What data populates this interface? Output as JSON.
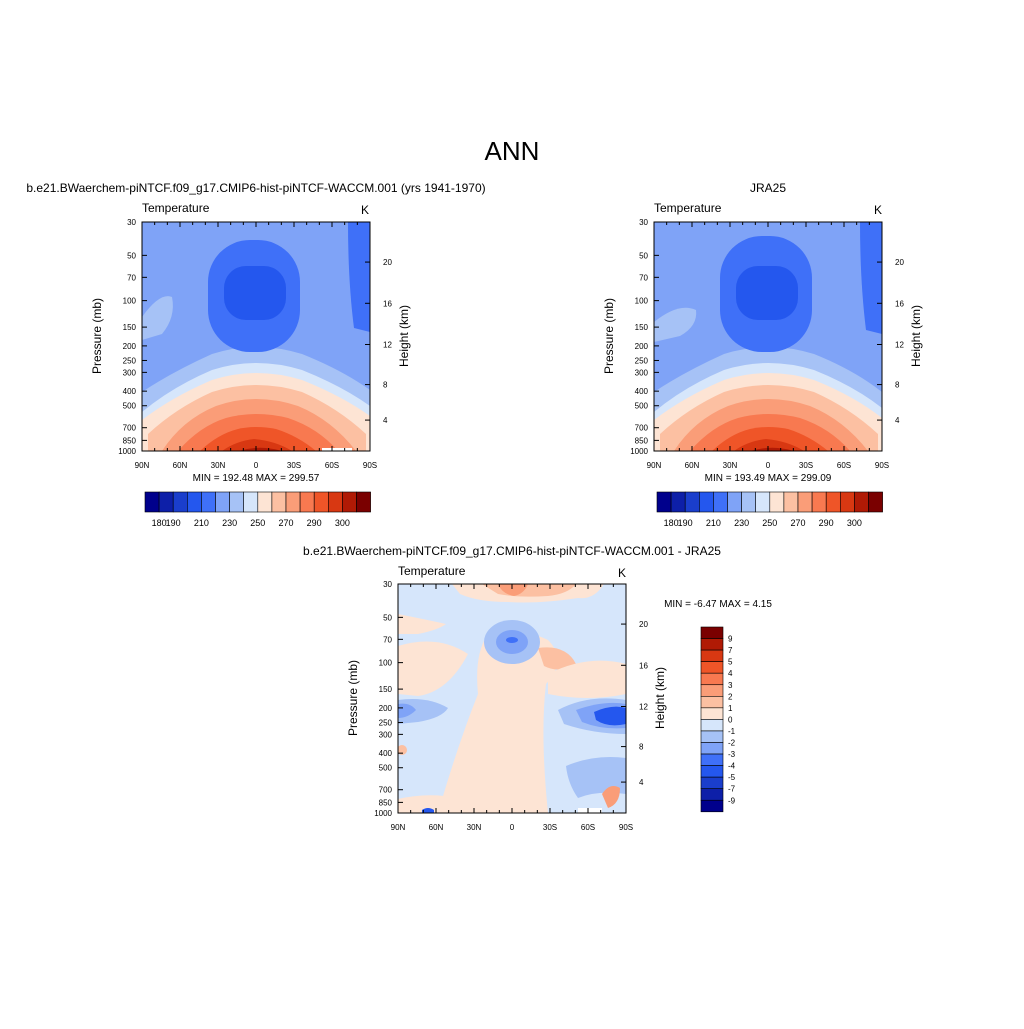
{
  "title": "ANN",
  "colors": {
    "temp_scale": [
      "#00008c",
      "#0d1fa8",
      "#1a3ecc",
      "#2457ee",
      "#3f70f8",
      "#7fa3f7",
      "#a6c2f6",
      "#d6e6fb",
      "#fde4d4",
      "#fcc0a2",
      "#fa9d78",
      "#f87950",
      "#ef5528",
      "#d83812",
      "#b01a05",
      "#7a0000"
    ],
    "diff_scale": [
      "#00008c",
      "#0d1fa8",
      "#1a3ecc",
      "#2457ee",
      "#3f70f8",
      "#7fa3f7",
      "#a6c2f6",
      "#d6e6fb",
      "#fde4d4",
      "#fcc0a2",
      "#fa9d78",
      "#f87950",
      "#ef5528",
      "#d83812",
      "#b01a05",
      "#7a0000"
    ]
  },
  "chart_data": [
    {
      "type": "heatmap",
      "title": "b.e21.BWaerchem-piNTCF.f09_g17.CMIP6-hist-piNTCF-WACCM.001 (yrs 1941-1970)",
      "left_label": "Temperature",
      "right_label": "K",
      "ylabel": "Pressure (mb)",
      "y2label": "Height (km)",
      "x_ticks": [
        "90N",
        "60N",
        "30N",
        "0",
        "30S",
        "60S",
        "90S"
      ],
      "y_ticks": [
        "30",
        "50",
        "70",
        "100",
        "150",
        "200",
        "250",
        "300",
        "400",
        "500",
        "700",
        "850",
        "1000"
      ],
      "y2_ticks": [
        "20",
        "16",
        "12",
        "8",
        "4"
      ],
      "stats": "MIN = 192.48  MAX = 299.57",
      "colorbar_labels": [
        "180",
        "190",
        "210",
        "230",
        "250",
        "270",
        "290",
        "300"
      ]
    },
    {
      "type": "heatmap",
      "title": "JRA25",
      "left_label": "Temperature",
      "right_label": "K",
      "ylabel": "Pressure (mb)",
      "y2label": "Height (km)",
      "x_ticks": [
        "90N",
        "60N",
        "30N",
        "0",
        "30S",
        "60S",
        "90S"
      ],
      "y_ticks": [
        "30",
        "50",
        "70",
        "100",
        "150",
        "200",
        "250",
        "300",
        "400",
        "500",
        "700",
        "850",
        "1000"
      ],
      "y2_ticks": [
        "20",
        "16",
        "12",
        "8",
        "4"
      ],
      "stats": "MIN = 193.49  MAX = 299.09",
      "colorbar_labels": [
        "180",
        "190",
        "210",
        "230",
        "250",
        "270",
        "290",
        "300"
      ]
    },
    {
      "type": "heatmap",
      "title": "b.e21.BWaerchem-piNTCF.f09_g17.CMIP6-hist-piNTCF-WACCM.001 - JRA25",
      "left_label": "Temperature",
      "right_label": "K",
      "ylabel": "Pressure (mb)",
      "y2label": "Height (km)",
      "x_ticks": [
        "90N",
        "60N",
        "30N",
        "0",
        "30S",
        "60S",
        "90S"
      ],
      "y_ticks": [
        "30",
        "50",
        "70",
        "100",
        "150",
        "200",
        "250",
        "300",
        "400",
        "500",
        "700",
        "850",
        "1000"
      ],
      "y2_ticks": [
        "20",
        "16",
        "12",
        "8",
        "4"
      ],
      "stats": "MIN =  -6.47  MAX =   4.15",
      "colorbar_labels": [
        "9",
        "7",
        "5",
        "4",
        "3",
        "2",
        "1",
        "0",
        "-1",
        "-2",
        "-3",
        "-4",
        "-5",
        "-7",
        "-9"
      ]
    }
  ]
}
